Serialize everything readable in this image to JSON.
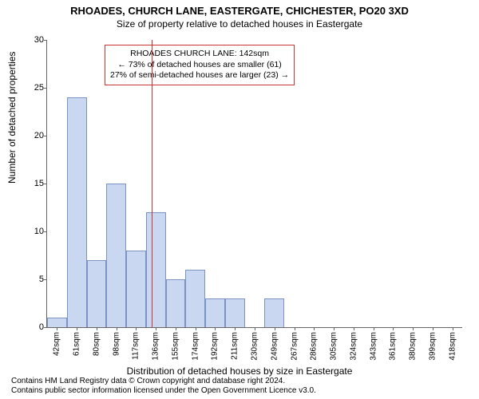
{
  "title": "RHOADES, CHURCH LANE, EASTERGATE, CHICHESTER, PO20 3XD",
  "subtitle": "Size of property relative to detached houses in Eastergate",
  "ylabel": "Number of detached properties",
  "xlabel": "Distribution of detached houses by size in Eastergate",
  "chart": {
    "type": "histogram",
    "ylim": [
      0,
      30
    ],
    "ytick_step": 5,
    "xticks": [
      "42sqm",
      "61sqm",
      "80sqm",
      "98sqm",
      "117sqm",
      "136sqm",
      "155sqm",
      "174sqm",
      "192sqm",
      "211sqm",
      "230sqm",
      "249sqm",
      "267sqm",
      "286sqm",
      "305sqm",
      "324sqm",
      "343sqm",
      "361sqm",
      "380sqm",
      "399sqm",
      "418sqm"
    ],
    "values": [
      1,
      24,
      7,
      15,
      8,
      12,
      5,
      6,
      3,
      3,
      0,
      3,
      0,
      0,
      0,
      0,
      0,
      0,
      0,
      0,
      0
    ],
    "bar_color": "#c9d8f0",
    "bar_border": "#7a93c4",
    "bar_width": 1.0,
    "axis_color": "#666666",
    "ref_line_x_index": 5.3,
    "ref_line_color": "#cc3333"
  },
  "annotation": {
    "lines": [
      "RHOADES CHURCH LANE: 142sqm",
      "← 73% of detached houses are smaller (61)",
      "27% of semi-detached houses are larger (23) →"
    ],
    "border_color": "#cc3333"
  },
  "footer": {
    "line1": "Contains HM Land Registry data © Crown copyright and database right 2024.",
    "line2": "Contains public sector information licensed under the Open Government Licence v3.0."
  }
}
